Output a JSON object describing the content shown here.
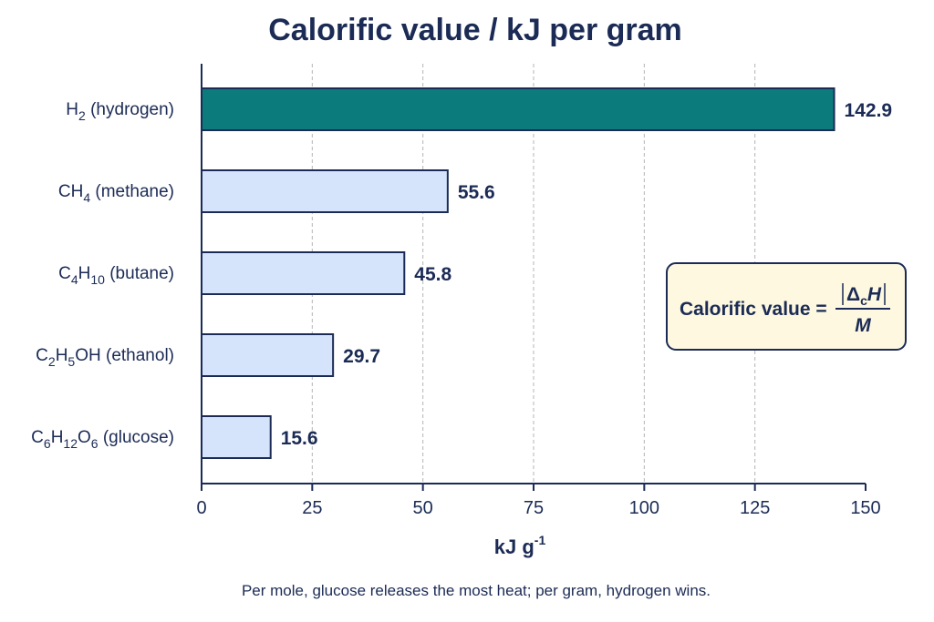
{
  "chart_data": {
    "type": "bar",
    "orientation": "horizontal",
    "title": "Calorific value / kJ per gram",
    "xlabel": {
      "base": "kJ g",
      "sup": "-1"
    },
    "caption": "Per mole, glucose releases the most heat; per gram, hydrogen wins.",
    "xlim": [
      0,
      150
    ],
    "xticks": [
      "0",
      "25",
      "50",
      "75",
      "100",
      "125",
      "150"
    ],
    "tick_values": [
      0,
      25,
      50,
      75,
      100,
      125,
      150
    ],
    "grid": "vertical dashed",
    "categories": [
      {
        "parts": [
          [
            "H",
            ""
          ],
          [
            "2",
            "sub"
          ],
          [
            " (hydrogen)",
            ""
          ]
        ]
      },
      {
        "parts": [
          [
            "CH",
            ""
          ],
          [
            "4",
            "sub"
          ],
          [
            " (methane)",
            ""
          ]
        ]
      },
      {
        "parts": [
          [
            "C",
            ""
          ],
          [
            "4",
            "sub"
          ],
          [
            "H",
            ""
          ],
          [
            "10",
            "sub"
          ],
          [
            " (butane)",
            ""
          ]
        ]
      },
      {
        "parts": [
          [
            "C",
            ""
          ],
          [
            "2",
            "sub"
          ],
          [
            "H",
            ""
          ],
          [
            "5",
            "sub"
          ],
          [
            "OH (ethanol)",
            ""
          ]
        ]
      },
      {
        "parts": [
          [
            "C",
            ""
          ],
          [
            "6",
            "sub"
          ],
          [
            "H",
            ""
          ],
          [
            "12",
            "sub"
          ],
          [
            "O",
            ""
          ],
          [
            "6",
            "sub"
          ],
          [
            " (glucose)",
            ""
          ]
        ]
      }
    ],
    "values": [
      142.9,
      55.6,
      45.8,
      29.7,
      15.6
    ],
    "value_labels": [
      "142.9",
      "55.6",
      "45.8",
      "29.7",
      "15.6"
    ],
    "highlight_index": 0,
    "colors": {
      "highlight": "#0b7b7c",
      "default": "#d6e4fb",
      "stroke": "#1b2b55",
      "grid": "#b5b5b5",
      "formula_bg": "#fdf8df"
    },
    "annotation": {
      "lhs": "Calorific value =",
      "numerator": {
        "delta": "Δ",
        "sub": "c",
        "var": "H"
      },
      "denominator": "M"
    }
  }
}
